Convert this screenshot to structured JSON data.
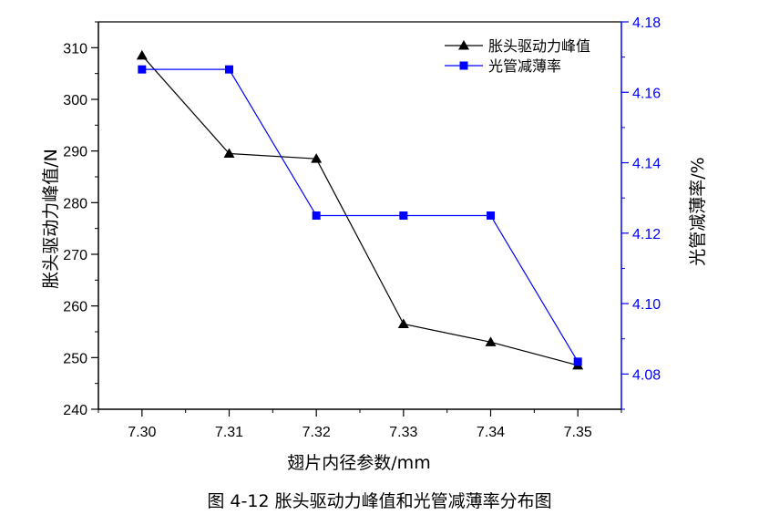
{
  "caption": "图 4-12  胀头驱动力峰值和光管减薄率分布图",
  "chart_data": {
    "type": "line",
    "x": [
      7.3,
      7.31,
      7.32,
      7.33,
      7.34,
      7.35
    ],
    "x_tick_labels": [
      "7.30",
      "7.31",
      "7.32",
      "7.33",
      "7.34",
      "7.35"
    ],
    "xlabel": "翅片内径参数/mm",
    "xlim": [
      7.295,
      7.355
    ],
    "ylabel_left": "胀头驱动力峰值/N",
    "ylim_left": [
      240,
      315
    ],
    "yticks_left": [
      240,
      250,
      260,
      270,
      280,
      290,
      300,
      310
    ],
    "ylabel_right": "光管减薄率/%",
    "ylim_right": [
      4.07,
      4.18
    ],
    "yticks_right": [
      "4.08",
      "4.10",
      "4.12",
      "4.14",
      "4.16",
      "4.18"
    ],
    "series": [
      {
        "name": "胀头驱动力峰值",
        "axis": "left",
        "color": "#000000",
        "marker": "triangle",
        "values": [
          308.5,
          289.5,
          288.5,
          256.5,
          253,
          248.5
        ]
      },
      {
        "name": "光管减薄率",
        "axis": "right",
        "color": "#0000ff",
        "marker": "square",
        "values": [
          4.1665,
          4.1665,
          4.125,
          4.125,
          4.125,
          4.0835
        ]
      }
    ],
    "legend_position": "top-right",
    "grid": false
  }
}
